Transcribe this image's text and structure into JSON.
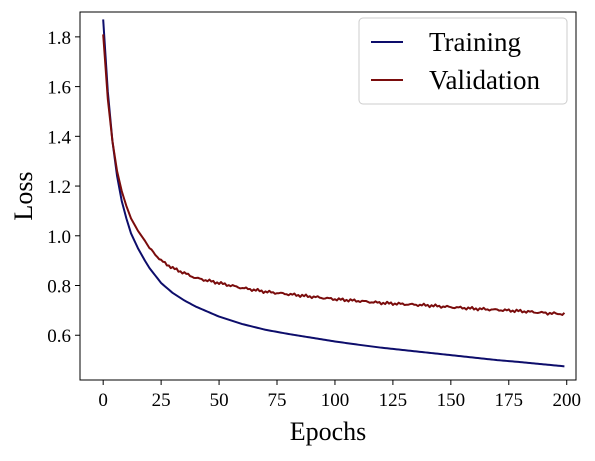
{
  "colors": {
    "training": "#0d0d6b",
    "validation": "#7a0c0c",
    "axes": "#000000",
    "background": "#ffffff"
  },
  "chart_data": {
    "type": "line",
    "title": "",
    "xlabel": "Epochs",
    "ylabel": "Loss",
    "xlim": [
      -10,
      204
    ],
    "ylim": [
      0.42,
      1.9
    ],
    "xticks": [
      0,
      25,
      50,
      75,
      100,
      125,
      150,
      175,
      200
    ],
    "yticks": [
      0.6,
      0.8,
      1.0,
      1.2,
      1.4,
      1.6,
      1.8
    ],
    "xtick_labels": [
      "0",
      "25",
      "50",
      "75",
      "100",
      "125",
      "150",
      "175",
      "200"
    ],
    "ytick_labels": [
      "0.6",
      "0.8",
      "1.0",
      "1.2",
      "1.4",
      "1.6",
      "1.8"
    ],
    "grid": false,
    "legend_position": "top-right",
    "x": [
      0,
      2,
      4,
      6,
      8,
      10,
      12,
      15,
      18,
      20,
      25,
      30,
      35,
      40,
      45,
      50,
      60,
      70,
      80,
      90,
      100,
      110,
      120,
      130,
      140,
      150,
      160,
      170,
      180,
      190,
      199
    ],
    "series": [
      {
        "name": "Training",
        "color": "#0d0d6b",
        "values": [
          1.87,
          1.58,
          1.38,
          1.24,
          1.14,
          1.07,
          1.01,
          0.95,
          0.9,
          0.87,
          0.81,
          0.77,
          0.74,
          0.715,
          0.695,
          0.675,
          0.645,
          0.622,
          0.605,
          0.59,
          0.575,
          0.562,
          0.55,
          0.54,
          0.53,
          0.52,
          0.51,
          0.5,
          0.492,
          0.483,
          0.475
        ]
      },
      {
        "name": "Validation",
        "color": "#7a0c0c",
        "values": [
          1.81,
          1.55,
          1.38,
          1.26,
          1.18,
          1.12,
          1.07,
          1.02,
          0.98,
          0.95,
          0.9,
          0.87,
          0.85,
          0.83,
          0.82,
          0.81,
          0.79,
          0.775,
          0.765,
          0.755,
          0.745,
          0.738,
          0.73,
          0.725,
          0.72,
          0.713,
          0.707,
          0.702,
          0.697,
          0.69,
          0.685
        ]
      }
    ]
  }
}
